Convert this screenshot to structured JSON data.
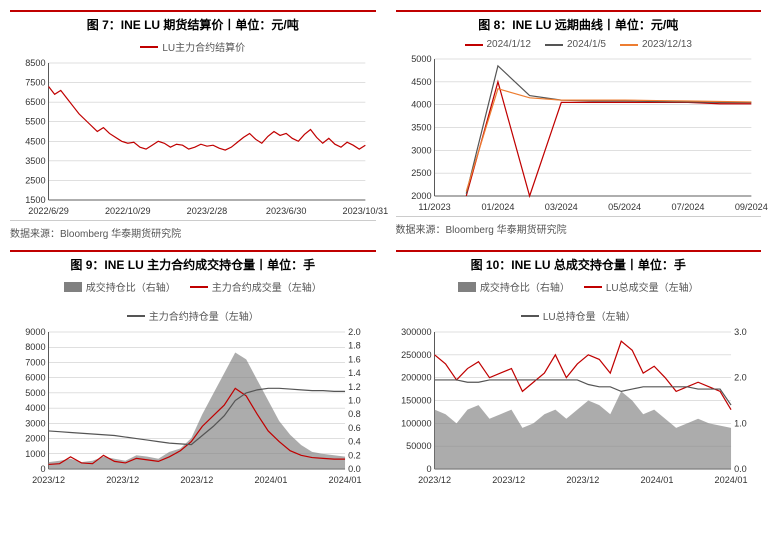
{
  "source_label": "数据来源：Bloomberg 华泰期货研究院",
  "chart7": {
    "title": "图 7：INE LU 期货结算价丨单位：元/吨",
    "legend": [
      {
        "label": "LU主力合约结算价",
        "color": "#c00000"
      }
    ],
    "ylim": [
      1500,
      8500
    ],
    "ytick_step": 1000,
    "xlabels": [
      "2022/6/29",
      "2022/10/29",
      "2023/2/28",
      "2023/6/30",
      "2023/10/31"
    ],
    "background": "#ffffff",
    "grid_color": "#bfbfbf",
    "series": [
      {
        "color": "#c00000",
        "width": 1.2,
        "data": [
          7300,
          6900,
          7100,
          6700,
          6300,
          5900,
          5600,
          5300,
          5000,
          5200,
          4900,
          4700,
          4500,
          4400,
          4450,
          4200,
          4100,
          4300,
          4500,
          4400,
          4200,
          4350,
          4300,
          4100,
          4200,
          4350,
          4250,
          4300,
          4150,
          4050,
          4200,
          4450,
          4700,
          4900,
          4600,
          4400,
          4750,
          5000,
          4800,
          4900,
          4650,
          4500,
          4850,
          5100,
          4700,
          4400,
          4650,
          4350,
          4200,
          4450,
          4300,
          4100,
          4300
        ]
      }
    ]
  },
  "chart8": {
    "title": "图 8：INE LU 远期曲线丨单位：元/吨",
    "legend": [
      {
        "label": "2024/1/12",
        "color": "#c00000"
      },
      {
        "label": "2024/1/5",
        "color": "#555555"
      },
      {
        "label": "2023/12/13",
        "color": "#ed7d31"
      }
    ],
    "ylim": [
      2000,
      5000
    ],
    "ytick_step": 500,
    "xlabels": [
      "11/2023",
      "01/2024",
      "03/2024",
      "05/2024",
      "07/2024",
      "09/2024"
    ],
    "background": "#ffffff",
    "grid_color": "#bfbfbf",
    "series": [
      {
        "color": "#c00000",
        "width": 1.2,
        "data": [
          null,
          2000,
          4500,
          2000,
          4050,
          4050,
          4050,
          4050,
          4050,
          4020,
          4020
        ]
      },
      {
        "color": "#555555",
        "width": 1.2,
        "data": [
          null,
          2050,
          4850,
          4200,
          4100,
          4080,
          4080,
          4070,
          4060,
          4050,
          4050
        ]
      },
      {
        "color": "#ed7d31",
        "width": 1.2,
        "data": [
          null,
          2100,
          4350,
          4150,
          4100,
          4100,
          4100,
          4090,
          4080,
          4070,
          4060
        ]
      }
    ]
  },
  "chart9": {
    "title": "图 9：INE LU 主力合约成交持仓量丨单位：手",
    "legend": [
      {
        "label": "成交持仓比（右轴）",
        "type": "area",
        "color": "#808080"
      },
      {
        "label": "主力合约成交量（左轴）",
        "type": "line",
        "color": "#c00000"
      },
      {
        "label": "主力合约持仓量（左轴）",
        "type": "line",
        "color": "#555555"
      }
    ],
    "ylim": [
      0,
      9000
    ],
    "ytick_step": 1000,
    "ylim2": [
      0,
      2.0
    ],
    "ytick_step2": 0.2,
    "xlabels": [
      "2023/12",
      "2023/12",
      "2023/12",
      "2024/01",
      "2024/01"
    ],
    "background": "#ffffff",
    "grid_color": "#bfbfbf",
    "area": {
      "color": "#808080",
      "opacity": 0.65,
      "data": [
        0.1,
        0.12,
        0.15,
        0.1,
        0.12,
        0.18,
        0.15,
        0.12,
        0.2,
        0.18,
        0.15,
        0.25,
        0.3,
        0.45,
        0.8,
        1.1,
        1.4,
        1.7,
        1.6,
        1.3,
        1.0,
        0.7,
        0.5,
        0.35,
        0.25,
        0.22,
        0.2,
        0.18
      ]
    },
    "series": [
      {
        "color": "#c00000",
        "width": 1.2,
        "data": [
          300,
          350,
          800,
          400,
          350,
          900,
          500,
          400,
          700,
          600,
          500,
          800,
          1200,
          1800,
          2800,
          3500,
          4200,
          5300,
          4800,
          3600,
          2500,
          1800,
          1200,
          900,
          750,
          700,
          650,
          650
        ]
      },
      {
        "color": "#555555",
        "width": 1.2,
        "data": [
          2500,
          2450,
          2400,
          2350,
          2300,
          2250,
          2200,
          2100,
          2000,
          1900,
          1800,
          1700,
          1650,
          1600,
          2200,
          2800,
          3500,
          4500,
          5000,
          5200,
          5300,
          5300,
          5250,
          5200,
          5150,
          5150,
          5100,
          5100
        ]
      }
    ]
  },
  "chart10": {
    "title": "图 10：INE LU 总成交持仓量丨单位：手",
    "legend": [
      {
        "label": "成交持仓比（右轴）",
        "type": "area",
        "color": "#808080"
      },
      {
        "label": "LU总成交量（左轴）",
        "type": "line",
        "color": "#c00000"
      },
      {
        "label": "LU总持仓量（左轴）",
        "type": "line",
        "color": "#555555"
      }
    ],
    "ylim": [
      0,
      300000
    ],
    "ytick_step": 50000,
    "ylim2": [
      0,
      3.0
    ],
    "ytick_step2": 1.0,
    "xlabels": [
      "2023/12",
      "2023/12",
      "2023/12",
      "2024/01",
      "2024/01"
    ],
    "background": "#ffffff",
    "grid_color": "#bfbfbf",
    "area": {
      "color": "#808080",
      "opacity": 0.65,
      "data": [
        1.3,
        1.2,
        1.0,
        1.3,
        1.4,
        1.1,
        1.2,
        1.3,
        0.9,
        1.0,
        1.2,
        1.3,
        1.1,
        1.3,
        1.5,
        1.4,
        1.2,
        1.7,
        1.5,
        1.2,
        1.3,
        1.1,
        0.9,
        1.0,
        1.1,
        1.0,
        0.95,
        0.9
      ]
    },
    "series": [
      {
        "color": "#c00000",
        "width": 1.2,
        "data": [
          250000,
          230000,
          195000,
          220000,
          235000,
          200000,
          210000,
          220000,
          170000,
          190000,
          210000,
          250000,
          200000,
          230000,
          250000,
          240000,
          210000,
          280000,
          260000,
          210000,
          225000,
          200000,
          170000,
          180000,
          190000,
          180000,
          170000,
          130000
        ]
      },
      {
        "color": "#555555",
        "width": 1.2,
        "data": [
          195000,
          195000,
          195000,
          190000,
          190000,
          195000,
          195000,
          195000,
          195000,
          195000,
          195000,
          195000,
          195000,
          195000,
          185000,
          180000,
          180000,
          170000,
          175000,
          180000,
          180000,
          180000,
          180000,
          180000,
          175000,
          175000,
          175000,
          140000
        ]
      }
    ]
  }
}
